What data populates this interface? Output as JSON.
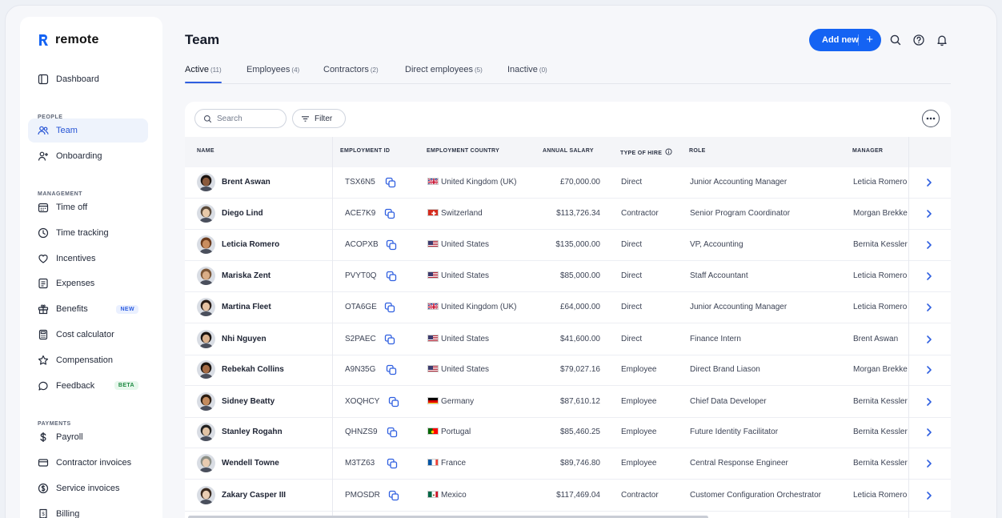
{
  "app": {
    "brand": "remote"
  },
  "sidebar": {
    "dashboard": "Dashboard",
    "sections": {
      "people": "PEOPLE",
      "management": "MANAGEMENT",
      "payments": "PAYMENTS"
    },
    "people": [
      {
        "label": "Team",
        "icon": "team-icon"
      },
      {
        "label": "Onboarding",
        "icon": "onboarding-icon"
      }
    ],
    "management": [
      {
        "label": "Time off",
        "icon": "calendar-icon"
      },
      {
        "label": "Time tracking",
        "icon": "clock-icon"
      },
      {
        "label": "Incentives",
        "icon": "heart-icon"
      },
      {
        "label": "Expenses",
        "icon": "receipt-icon"
      },
      {
        "label": "Benefits",
        "icon": "gift-icon",
        "badge": "NEW"
      },
      {
        "label": "Cost calculator",
        "icon": "calculator-icon"
      },
      {
        "label": "Compensation",
        "icon": "star-icon"
      },
      {
        "label": "Feedback",
        "icon": "chat-icon",
        "badge": "BETA"
      }
    ],
    "payments": [
      {
        "label": "Payroll",
        "icon": "dollar-icon"
      },
      {
        "label": "Contractor invoices",
        "icon": "card-icon"
      },
      {
        "label": "Service invoices",
        "icon": "coin-icon"
      },
      {
        "label": "Billing",
        "icon": "billing-icon"
      }
    ]
  },
  "header": {
    "title": "Team",
    "add_label": "Add new",
    "add_plus": "+"
  },
  "tabs": [
    {
      "label": "Active",
      "count": "(11)"
    },
    {
      "label": "Employees",
      "count": "(4)"
    },
    {
      "label": "Contractors",
      "count": "(2)"
    },
    {
      "label": "Direct employees",
      "count": "(5)"
    },
    {
      "label": "Inactive",
      "count": "(0)"
    }
  ],
  "toolbar": {
    "search_placeholder": "Search",
    "filter_label": "Filter"
  },
  "columns": [
    "NAME",
    "EMPLOYMENT ID",
    "EMPLOYMENT COUNTRY",
    "ANNUAL SALARY",
    "TYPE OF HIRE",
    "ROLE",
    "MANAGER"
  ],
  "rows": [
    {
      "name": "Brent Aswan",
      "id": "TSX6N5",
      "country": "United Kingdom (UK)",
      "flag": "uk",
      "salary": "£70,000.00",
      "type": "Direct",
      "role": "Junior Accounting Manager",
      "manager": "Leticia Romero",
      "skin": "#8a5a3c",
      "hair": "#1b1410"
    },
    {
      "name": "Diego Lind",
      "id": "ACE7K9",
      "country": "Switzerland",
      "flag": "ch",
      "salary": "$113,726.34",
      "type": "Contractor",
      "role": "Senior Program Coordinator",
      "manager": "Morgan Brekke",
      "skin": "#e7c9a9",
      "hair": "#5a4a3a"
    },
    {
      "name": "Leticia Romero",
      "id": "ACOPXB",
      "country": "United States",
      "flag": "us",
      "salary": "$135,000.00",
      "type": "Direct",
      "role": "VP, Accounting",
      "manager": "Bernita Kessler",
      "skin": "#c98d5f",
      "hair": "#6b3b1c"
    },
    {
      "name": "Mariska Zent",
      "id": "PVYT0Q",
      "country": "United States",
      "flag": "us",
      "salary": "$85,000.00",
      "type": "Direct",
      "role": "Staff Accountant",
      "manager": "Leticia Romero",
      "skin": "#d9ad86",
      "hair": "#7a5535"
    },
    {
      "name": "Martina Fleet",
      "id": "OTA6GE",
      "country": "United Kingdom (UK)",
      "flag": "uk",
      "salary": "£64,000.00",
      "type": "Direct",
      "role": "Junior Accounting Manager",
      "manager": "Leticia Romero",
      "skin": "#e6c2a2",
      "hair": "#2a1d16"
    },
    {
      "name": "Nhi Nguyen",
      "id": "S2PAEC",
      "country": "United States",
      "flag": "us",
      "salary": "$41,600.00",
      "type": "Direct",
      "role": "Finance Intern",
      "manager": "Brent Aswan",
      "skin": "#d9b08c",
      "hair": "#1a1411"
    },
    {
      "name": "Rebekah Collins",
      "id": "A9N35G",
      "country": "United States",
      "flag": "us",
      "salary": "$79,027.16",
      "type": "Employee",
      "role": "Direct Brand Liason",
      "manager": "Morgan Brekke",
      "skin": "#a46b45",
      "hair": "#1c1510"
    },
    {
      "name": "Sidney Beatty",
      "id": "XOQHCY",
      "country": "Germany",
      "flag": "de",
      "salary": "$87,610.12",
      "type": "Employee",
      "role": "Chief Data Developer",
      "manager": "Bernita Kessler",
      "skin": "#c38b5e",
      "hair": "#2b1d12"
    },
    {
      "name": "Stanley Rogahn",
      "id": "QHNZS9",
      "country": "Portugal",
      "flag": "pt",
      "salary": "$85,460.25",
      "type": "Employee",
      "role": "Future Identity Facilitator",
      "manager": "Bernita Kessler",
      "skin": "#e1c3a5",
      "hair": "#222"
    },
    {
      "name": "Wendell Towne",
      "id": "M3TZ63",
      "country": "France",
      "flag": "fr",
      "salary": "$89,746.80",
      "type": "Employee",
      "role": "Central Response Engineer",
      "manager": "Bernita Kessler",
      "skin": "#e8cbb0",
      "hair": "#8c8f86"
    },
    {
      "name": "Zakary Casper III",
      "id": "PMOSDR",
      "country": "Mexico",
      "flag": "mx",
      "salary": "$117,469.04",
      "type": "Contractor",
      "role": "Customer Configuration Orchestrator",
      "manager": "Leticia Romero",
      "skin": "#e9cdb3",
      "hair": "#3a2a1f"
    }
  ]
}
